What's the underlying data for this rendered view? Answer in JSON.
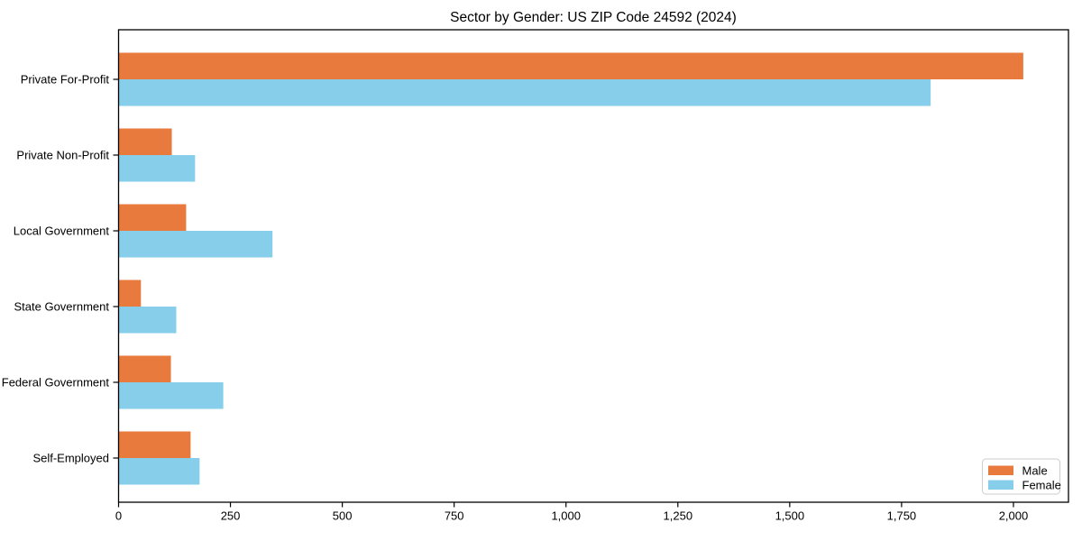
{
  "chart_data": {
    "type": "bar",
    "orientation": "horizontal",
    "title": "Sector by Gender: US ZIP Code 24592 (2024)",
    "categories": [
      "Private For-Profit",
      "Private Non-Profit",
      "Local Government",
      "State Government",
      "Federal Government",
      "Self-Employed"
    ],
    "series": [
      {
        "name": "Male",
        "color": "#e87a3e",
        "values": [
          2022,
          119,
          151,
          50,
          117,
          161
        ]
      },
      {
        "name": "Female",
        "color": "#87ceeb",
        "values": [
          1815,
          171,
          344,
          129,
          234,
          181
        ]
      }
    ],
    "xlabel": "",
    "ylabel": "",
    "xlim": [
      0,
      2123
    ],
    "xticks": [
      0,
      250,
      500,
      750,
      1000,
      1250,
      1500,
      1750,
      2000
    ],
    "xtick_labels": [
      "0",
      "250",
      "500",
      "750",
      "1,000",
      "1,250",
      "1,500",
      "1,750",
      "2,000"
    ],
    "grid": false,
    "legend": {
      "position": "lower right",
      "entries": [
        "Male",
        "Female"
      ],
      "border_color": "#cccccc",
      "background": "#ffffff"
    },
    "axis_color": "#000000",
    "plot_background": "#ffffff"
  }
}
